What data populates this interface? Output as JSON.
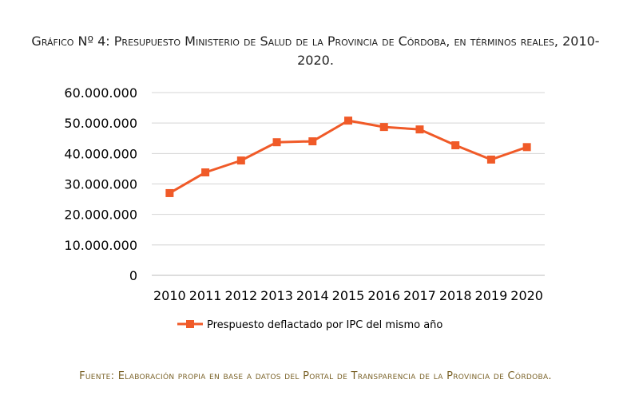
{
  "chart_data": {
    "type": "line",
    "title": "Gráfico Nº 4: Presupuesto Ministerio de Salud de la Provincia de Córdoba, en términos reales, 2010-2020.",
    "categories": [
      "2010",
      "2011",
      "2012",
      "2013",
      "2014",
      "2015",
      "2016",
      "2017",
      "2018",
      "2019",
      "2020"
    ],
    "series": [
      {
        "name": "Prespuesto deflactado por IPC del mismo año",
        "color": "#f05a28",
        "values": [
          27000000,
          33800000,
          37700000,
          43700000,
          44000000,
          50800000,
          48700000,
          47900000,
          42700000,
          38000000,
          42100000
        ]
      }
    ],
    "ylim": [
      0,
      60000000
    ],
    "yticks": [
      "0",
      "10.000.000",
      "20.000.000",
      "30.000.000",
      "40.000.000",
      "50.000.000",
      "60.000.000"
    ],
    "grid": true,
    "legend": "bottom",
    "xlabel": "",
    "ylabel": ""
  },
  "footer": "Fuente: Elaboración propia en base a datos del Portal de Transparencia de la Provincia de Córdoba."
}
